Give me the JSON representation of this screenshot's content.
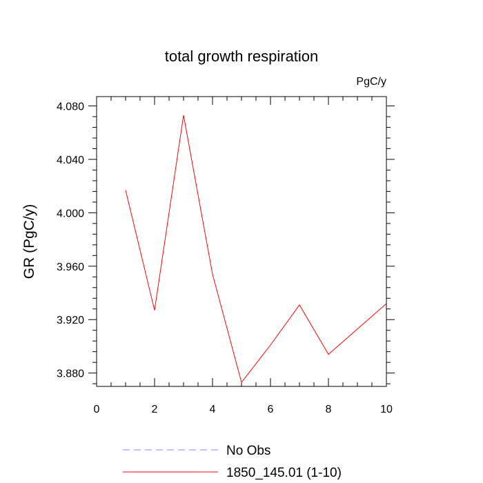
{
  "chart_data": {
    "type": "line",
    "title": "total growth respiration",
    "units": "PgC/y",
    "xlabel": "",
    "ylabel": "GR  (PgC/y)",
    "xlim": [
      0,
      10
    ],
    "ylim": [
      3.87,
      4.087
    ],
    "xticks": [
      0,
      2,
      4,
      6,
      8,
      10
    ],
    "xtick_labels": [
      "0",
      "2",
      "4",
      "6",
      "8",
      "10"
    ],
    "yticks": [
      3.88,
      3.92,
      3.96,
      4.0,
      4.04,
      4.08
    ],
    "ytick_labels": [
      "3.880",
      "3.920",
      "3.960",
      "4.000",
      "4.040",
      "4.080"
    ],
    "grid": false,
    "series": [
      {
        "name": "1850_145.01 (1-10)",
        "color": "#ff0000",
        "style": "solid",
        "x": [
          1,
          2,
          3,
          4,
          5,
          6,
          7,
          8,
          9,
          10
        ],
        "values": [
          4.017,
          3.927,
          4.073,
          3.954,
          3.873,
          3.901,
          3.931,
          3.894,
          3.913,
          3.932
        ]
      }
    ],
    "legend": [
      {
        "label": "No Obs",
        "color": "#8080ff",
        "style": "dashed"
      },
      {
        "label": "1850_145.01 (1-10)",
        "color": "#ff0000",
        "style": "solid"
      }
    ],
    "legend_position": "bottom"
  }
}
